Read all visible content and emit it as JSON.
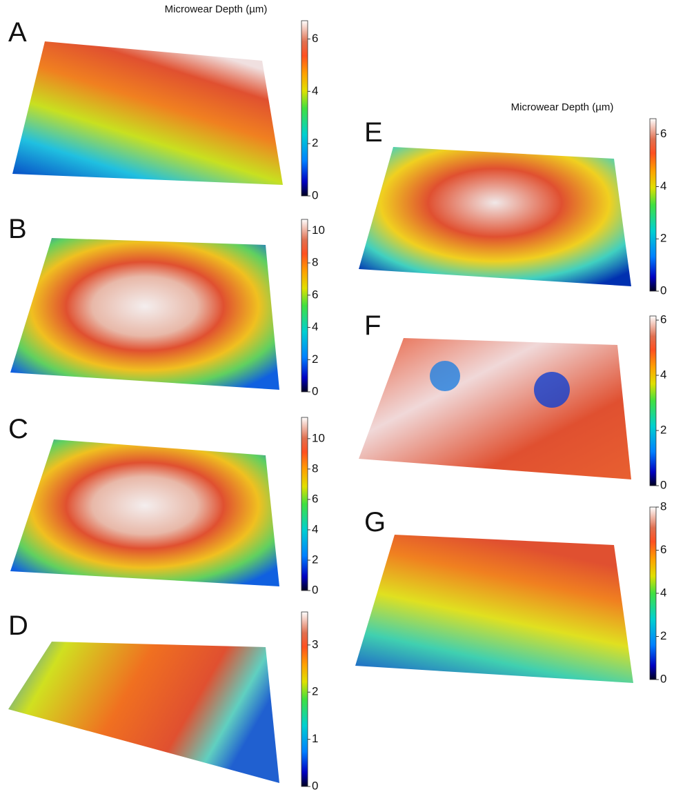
{
  "titles": [
    "Microwear Depth (µm)",
    "Microwear Depth (µm)"
  ],
  "panels": [
    {
      "label": "A",
      "colorbar": {
        "lim": [
          0,
          6.7
        ],
        "ticks": [
          0,
          2,
          4,
          6
        ]
      }
    },
    {
      "label": "B",
      "colorbar": {
        "lim": [
          0,
          10.7
        ],
        "ticks": [
          0,
          2,
          4,
          6,
          8,
          10
        ]
      }
    },
    {
      "label": "C",
      "colorbar": {
        "lim": [
          0,
          11.4
        ],
        "ticks": [
          0,
          2,
          4,
          6,
          8,
          10
        ]
      }
    },
    {
      "label": "D",
      "colorbar": {
        "lim": [
          0,
          3.7
        ],
        "ticks": [
          0,
          1,
          2,
          3
        ]
      }
    },
    {
      "label": "E",
      "colorbar": {
        "lim": [
          0,
          6.6
        ],
        "ticks": [
          0,
          2,
          4,
          6
        ]
      }
    },
    {
      "label": "F",
      "colorbar": {
        "lim": [
          0,
          6.15
        ],
        "ticks": [
          0,
          2,
          4,
          6
        ]
      }
    },
    {
      "label": "G",
      "colorbar": {
        "lim": [
          0,
          8
        ],
        "ticks": [
          0,
          2,
          4,
          6,
          8
        ]
      }
    }
  ]
}
